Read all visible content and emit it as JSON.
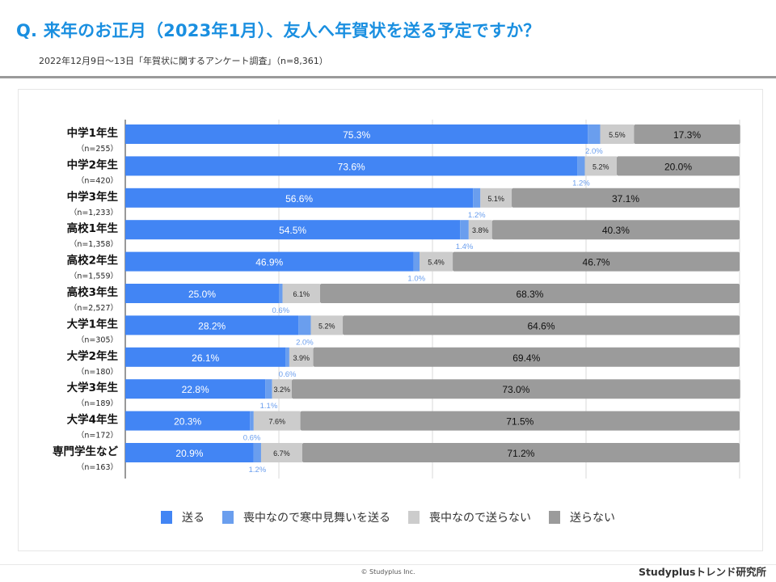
{
  "header": {
    "title": "Q. 来年のお正月（2023年1月）、友人へ年賀状を送る予定ですか？",
    "subtitle": "2022年12月9日〜13日「年賀状に関するアンケート調査」（n=8,361）"
  },
  "footer": {
    "copyright": "© Studyplus Inc.",
    "brand": "Studyplusトレンド研究所"
  },
  "colors": {
    "send": "#4285f4",
    "mourning_card": "#6a9eee",
    "mourning_no": "#cccccc",
    "no_send": "#9b9b9b",
    "small_label": "#6a9eee",
    "title": "#1a8fe0"
  },
  "chart_data": {
    "type": "bar",
    "orientation": "horizontal",
    "stacked": true,
    "title": "Q. 来年のお正月（2023年1月）、友人へ年賀状を送る予定ですか？",
    "xlabel": "",
    "ylabel": "",
    "xlim": [
      0,
      100
    ],
    "grid": true,
    "gridlines_at": [
      25,
      50,
      75
    ],
    "legend_position": "bottom",
    "categories": [
      "中学1年生",
      "中学2年生",
      "中学3年生",
      "高校1年生",
      "高校2年生",
      "高校3年生",
      "大学1年生",
      "大学2年生",
      "大学3年生",
      "大学4年生",
      "専門学生など"
    ],
    "sample_sizes": [
      "（n=255）",
      "（n=420）",
      "（n=1,233）",
      "（n=1,358）",
      "（n=1,559）",
      "（n=2,527）",
      "（n=305）",
      "（n=180）",
      "（n=189）",
      "（n=172）",
      "（n=163）"
    ],
    "series": [
      {
        "name": "送る",
        "values": [
          75.3,
          73.6,
          56.6,
          54.5,
          46.9,
          25.0,
          28.2,
          26.1,
          22.8,
          20.3,
          20.9
        ]
      },
      {
        "name": "喪中なので寒中見舞いを送る",
        "values": [
          2.0,
          1.2,
          1.2,
          1.4,
          1.0,
          0.6,
          2.0,
          0.6,
          1.1,
          0.6,
          1.2
        ]
      },
      {
        "name": "喪中なので送らない",
        "values": [
          5.5,
          5.2,
          5.1,
          3.8,
          5.4,
          6.1,
          5.2,
          3.9,
          3.2,
          7.6,
          6.7
        ]
      },
      {
        "name": "送らない",
        "values": [
          17.3,
          20.0,
          37.1,
          40.3,
          46.7,
          68.3,
          64.6,
          69.4,
          73.0,
          71.5,
          71.2
        ]
      }
    ]
  }
}
